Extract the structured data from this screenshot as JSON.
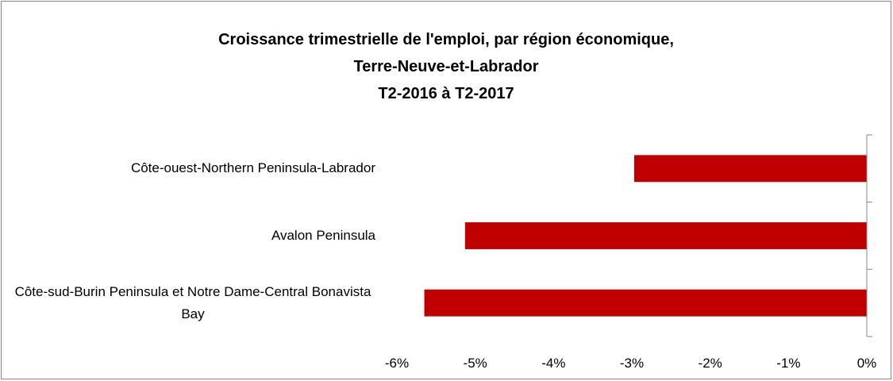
{
  "chart_data": {
    "type": "bar",
    "orientation": "horizontal",
    "title": [
      "Croissance trimestrielle de l'emploi, par région économique,",
      "Terre-Neuve-et-Labrador",
      "T2-2016 à T2-2017"
    ],
    "categories": [
      "Côte-ouest-Northern Peninsula-Labrador",
      "Avalon Peninsula",
      "Côte-sud-Burin Peninsula et Notre Dame-Central Bonavista Bay"
    ],
    "values": [
      -2.97,
      -5.13,
      -5.65
    ],
    "color": "#c00000",
    "xlim": [
      -6,
      0
    ],
    "xticks": [
      {
        "value": -6,
        "label": "-6%"
      },
      {
        "value": -5,
        "label": "-5%"
      },
      {
        "value": -4,
        "label": "-4%"
      },
      {
        "value": -3,
        "label": "-3%"
      },
      {
        "value": -2,
        "label": "-2%"
      },
      {
        "value": -1,
        "label": "-1%"
      },
      {
        "value": 0,
        "label": "0%"
      }
    ],
    "grid": false
  }
}
